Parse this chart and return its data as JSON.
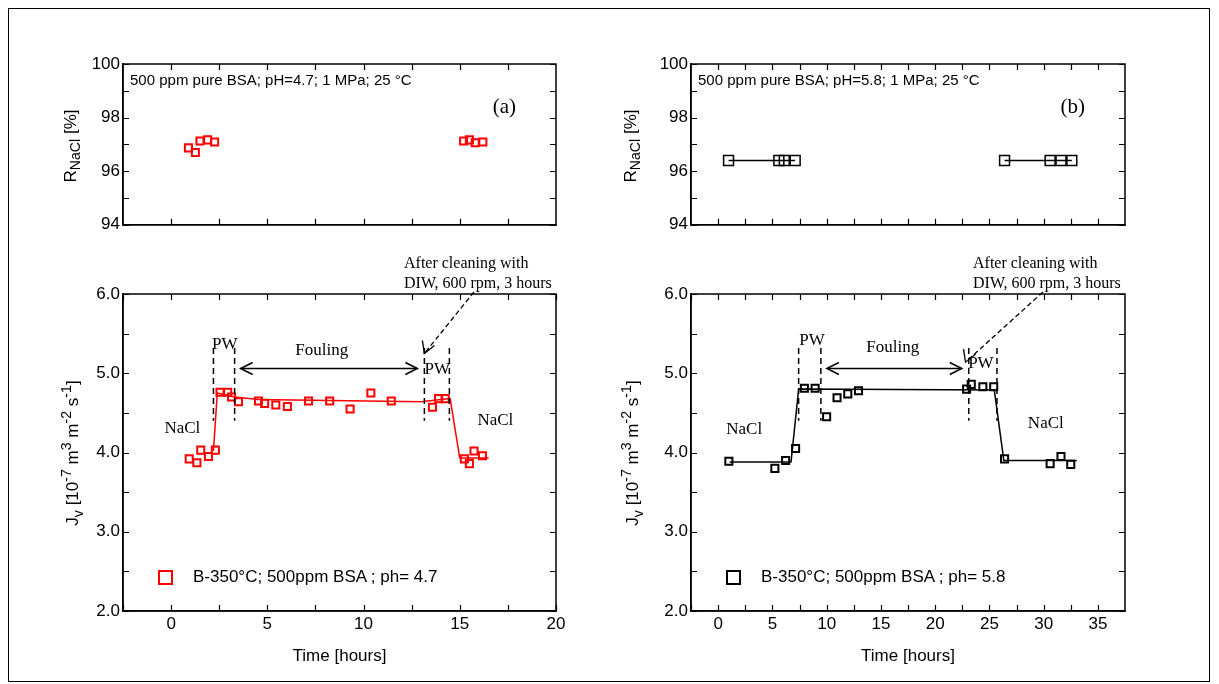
{
  "chart_data": [
    {
      "type": "scatter",
      "ylabel": "R$_{NaCl}$ [%]",
      "annotations": [
        "500 ppm pure BSA; pH=4.7; 1 MPa; 25 °C",
        "(a)"
      ],
      "xlim": [
        -2.5,
        20
      ],
      "xticks": [
        {
          "value": 0,
          "label": null
        },
        {
          "value": 2.5,
          "label": null
        },
        {
          "value": 5,
          "label": null
        },
        {
          "value": 7.5,
          "label": null
        },
        {
          "value": 10,
          "label": null
        },
        {
          "value": 12.5,
          "label": null
        },
        {
          "value": 15,
          "label": null
        },
        {
          "value": 17.5,
          "label": null
        }
      ],
      "ylim": [
        94,
        100
      ],
      "yticks": [
        94,
        {
          "value": 95,
          "label": null
        },
        96,
        {
          "value": 97,
          "label": null
        },
        98,
        {
          "value": 99,
          "label": null
        },
        100
      ],
      "tick_labels": "y",
      "grid": false,
      "legend": false,
      "marker": "square",
      "series": [
        {
          "color": "#ff0000",
          "x": [
            0.9,
            1.26,
            1.5,
            1.9,
            2.26,
            15.2,
            15.5,
            15.8,
            16.2
          ],
          "values": [
            96.87,
            96.7,
            97.13,
            97.17,
            97.09,
            97.13,
            97.17,
            97.06,
            97.09
          ]
        }
      ]
    },
    {
      "type": "line",
      "ylabel": "R$_{NaCl}$ [%]",
      "annotations": [
        "500 ppm pure BSA; pH=5.8; 1 MPa; 25 °C",
        "(b)"
      ],
      "xlim": [
        -2.5,
        37.5
      ],
      "xticks": [
        {
          "value": 0,
          "label": null
        },
        {
          "value": 2.5,
          "label": null
        },
        {
          "value": 5,
          "label": null
        },
        {
          "value": 7.5,
          "label": null
        },
        {
          "value": 10,
          "label": null
        },
        {
          "value": 12.5,
          "label": null
        },
        {
          "value": 15,
          "label": null
        },
        {
          "value": 17.5,
          "label": null
        },
        {
          "value": 20,
          "label": null
        },
        {
          "value": 22.5,
          "label": null
        },
        {
          "value": 25,
          "label": null
        },
        {
          "value": 27.5,
          "label": null
        },
        {
          "value": 30,
          "label": null
        },
        {
          "value": 32.5,
          "label": null
        },
        {
          "value": 35,
          "label": null
        }
      ],
      "ylim": [
        94,
        100
      ],
      "yticks": [
        94,
        {
          "value": 95,
          "label": null
        },
        96,
        {
          "value": 97,
          "label": null
        },
        98,
        {
          "value": 99,
          "label": null
        },
        100
      ],
      "tick_labels": "y",
      "grid": false,
      "legend": false,
      "marker": "square",
      "series": [
        {
          "color": "#000000",
          "x": [
            0.96,
            5.6,
            6.1,
            7.1,
            16,
            26.4,
            30.6,
            31.6,
            32.6
          ],
          "values": [
            96.4,
            96.4,
            96.4,
            96.4,
            null,
            96.4,
            96.4,
            96.4,
            96.4
          ]
        }
      ]
    },
    {
      "type": "scatter",
      "xlabel": "Time [hours]",
      "ylabel": "J$_{v}$ [10$^{-7}$ m$^{3}$ m$^{-2}$ s$^{-1}$]",
      "annotations": [
        {
          "text": "After cleaning with DIW, 600 rpm, 3 hours",
          "x": 13.16,
          "y": 5.25
        },
        "PW",
        "Fouling",
        "PW",
        "NaCl",
        "NaCl"
      ],
      "xlim": [
        -2.5,
        20
      ],
      "xticks": [
        {
          "value": -2.5,
          "label": null
        },
        0,
        {
          "value": 2.5,
          "label": null
        },
        5,
        {
          "value": 7.5,
          "label": null
        },
        10,
        {
          "value": 12.5,
          "label": null
        },
        15,
        {
          "value": 17.5,
          "label": null
        },
        20
      ],
      "ylim": [
        2,
        6
      ],
      "yticks": [
        {
          "value": 2,
          "label": "2.0"
        },
        {
          "value": 2.5,
          "label": null
        },
        {
          "value": 3,
          "label": "3.0"
        },
        {
          "value": 3.5,
          "label": null
        },
        {
          "value": 4,
          "label": "4.0"
        },
        {
          "value": 4.5,
          "label": null
        },
        {
          "value": 5,
          "label": "5.0"
        },
        {
          "value": 5.5,
          "label": null
        },
        {
          "value": 6,
          "label": "6.0"
        }
      ],
      "grid": false,
      "legend": "bottom left",
      "marker": "square",
      "ref_lines": [
        {
          "axis": "x",
          "value": 2.2,
          "line_style": "dashed"
        },
        {
          "axis": "x",
          "value": 3.3,
          "line_style": "dashed"
        },
        {
          "axis": "x",
          "value": 13.16,
          "line_style": "dashed"
        },
        {
          "axis": "x",
          "value": 14.46,
          "line_style": "dashed"
        }
      ],
      "series": [
        {
          "name": "B-350°C; 500ppm BSA ; ph= 4.7",
          "color": "#ff0000",
          "x": [
            0.94,
            1.34,
            1.54,
            1.94,
            2.3,
            2.54,
            2.94,
            3.14,
            3.5,
            4.54,
            4.86,
            5.44,
            6.04,
            7.14,
            8.24,
            9.3,
            10.38,
            11.44,
            13.58,
            13.9,
            14.24,
            15.24,
            15.5,
            15.74,
            16.18
          ],
          "values": [
            3.92,
            3.87,
            4.03,
            3.95,
            4.03,
            4.76,
            4.76,
            4.7,
            4.64,
            4.65,
            4.62,
            4.6,
            4.58,
            4.65,
            4.65,
            4.55,
            4.75,
            4.65,
            4.57,
            4.68,
            4.68,
            3.92,
            3.86,
            4.02,
            3.96
          ]
        },
        {
          "type": "line",
          "marker": "none",
          "color": "#ff0000",
          "x": [
            2.2,
            2.4,
            3.3,
            4.5,
            13,
            14.5,
            15,
            16.5
          ],
          "values": [
            4.02,
            4.75,
            4.7,
            4.67,
            4.64,
            4.68,
            3.93,
            3.93
          ]
        }
      ]
    },
    {
      "type": "scatter",
      "xlabel": "Time [hours]",
      "ylabel": "J$_{v}$ [10$^{-7}$ m$^{3}$ m$^{-2}$ s$^{-1}$]",
      "annotations": [
        {
          "text": "After cleaning with DIW, 600 rpm, 3 hours",
          "x": 22.8,
          "y": 5.14
        },
        "PW",
        "Fouling",
        "PW",
        "NaCl",
        "NaCl"
      ],
      "xlim": [
        -2.5,
        37.5
      ],
      "xticks": [
        {
          "value": -2.5,
          "label": null
        },
        0,
        {
          "value": 2.5,
          "label": null
        },
        5,
        {
          "value": 7.5,
          "label": null
        },
        10,
        {
          "value": 12.5,
          "label": null
        },
        15,
        {
          "value": 17.5,
          "label": null
        },
        20,
        {
          "value": 22.5,
          "label": null
        },
        25,
        {
          "value": 27.5,
          "label": null
        },
        30,
        {
          "value": 32.5,
          "label": null
        },
        35
      ],
      "ylim": [
        2,
        6
      ],
      "yticks": [
        {
          "value": 2,
          "label": "2.0"
        },
        {
          "value": 2.5,
          "label": null
        },
        {
          "value": 3,
          "label": "3.0"
        },
        {
          "value": 3.5,
          "label": null
        },
        {
          "value": 4,
          "label": "4.0"
        },
        {
          "value": 4.5,
          "label": null
        },
        {
          "value": 5,
          "label": "5.0"
        },
        {
          "value": 5.5,
          "label": null
        },
        {
          "value": 6,
          "label": "6.0"
        }
      ],
      "grid": false,
      "legend": "bottom left",
      "marker": "square",
      "ref_lines": [
        {
          "axis": "x",
          "value": 7.42,
          "line_style": "dashed"
        },
        {
          "axis": "x",
          "value": 9.47,
          "line_style": "dashed"
        },
        {
          "axis": "x",
          "value": 23.1,
          "line_style": "dashed"
        },
        {
          "axis": "x",
          "value": 25.7,
          "line_style": "dashed"
        }
      ],
      "series": [
        {
          "name": "B-350°C; 500ppm BSA ; ph= 5.8",
          "color": "#000000",
          "x": [
            0.99,
            5.23,
            6.22,
            7.14,
            7.95,
            8.94,
            10,
            10.96,
            11.95,
            12.94,
            22.9,
            23.33,
            24.4,
            25.4,
            26.4,
            30.6,
            31.6,
            32.5
          ],
          "values": [
            3.89,
            3.8,
            3.9,
            4.05,
            4.81,
            4.81,
            4.45,
            4.69,
            4.74,
            4.78,
            4.8,
            4.86,
            4.83,
            4.83,
            3.92,
            3.86,
            3.95,
            3.85
          ]
        },
        {
          "type": "line",
          "marker": "none",
          "color": "#000000",
          "x": [
            1.06,
            6.72,
            7.42,
            25.45,
            26.33,
            33.05
          ],
          "values": [
            3.88,
            3.88,
            4.8,
            4.79,
            3.9,
            3.9
          ]
        }
      ]
    }
  ]
}
